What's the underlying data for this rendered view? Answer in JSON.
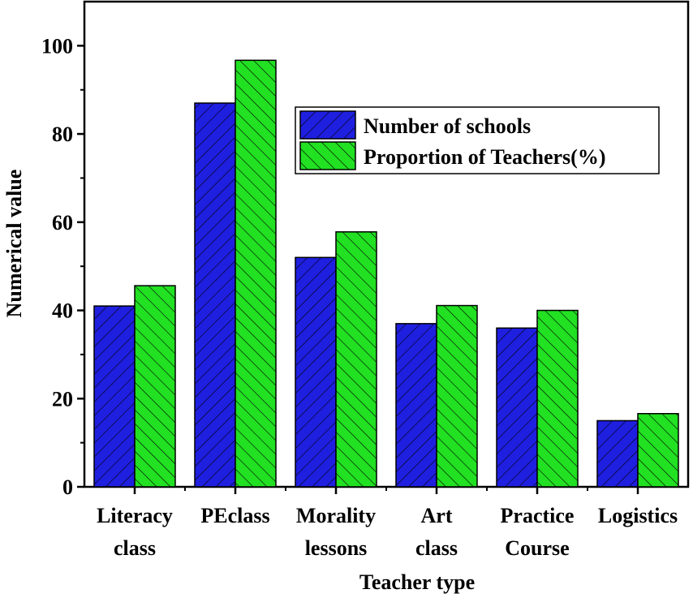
{
  "chart_data": {
    "type": "bar",
    "categories": [
      "Literacy class",
      "PEclass",
      "Morality lessons",
      "Art class",
      "Practice Course",
      "Logistics"
    ],
    "series": [
      {
        "name": "Number of schools",
        "values": [
          41,
          87,
          52,
          37,
          36,
          15
        ],
        "color": "#1f1fe0"
      },
      {
        "name": "Proportion of Teachers(%)",
        "values": [
          45.6,
          96.7,
          57.8,
          41.1,
          40.0,
          16.6
        ],
        "color": "#22e022"
      }
    ],
    "title": "",
    "xlabel": "Teacher type",
    "ylabel": "Numerical value",
    "ylim": [
      0,
      110
    ],
    "yticks": [
      0,
      20,
      40,
      60,
      80,
      100
    ],
    "legend_position": "top-right",
    "grid": false
  }
}
